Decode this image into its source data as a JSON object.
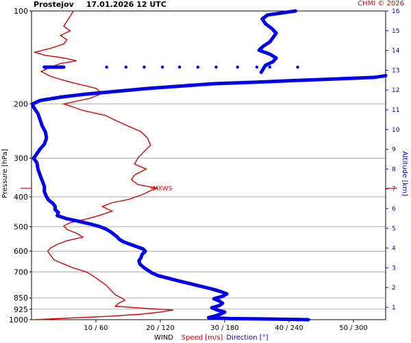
{
  "header": {
    "station": "Prostejov",
    "datetime": "17.01.2026 12 UTC",
    "credit": "CHMI © 2026"
  },
  "chart_data": {
    "type": "line",
    "left_axis": {
      "label": "Pressure [hPa]",
      "scale": "log",
      "range": [
        100,
        1000
      ],
      "ticks": [
        100,
        200,
        300,
        400,
        500,
        600,
        700,
        850,
        925,
        1000
      ]
    },
    "right_axis": {
      "label": "Altitude [km]",
      "ticks": [
        1,
        2,
        3,
        4,
        5,
        6,
        7,
        8,
        9,
        10,
        11,
        12,
        13,
        14,
        15,
        16
      ]
    },
    "bottom_axis": {
      "title": "WIND",
      "speed_label": "Speed [m/s]",
      "direction_label": "Direction [°]",
      "speed_range": [
        0,
        55
      ],
      "direction_range": [
        0,
        330
      ],
      "ticks": [
        "10 / 60",
        "20 / 120",
        "30 / 180",
        "40 / 240",
        "50 / 300"
      ],
      "tick_values_speed": [
        10,
        20,
        30,
        40,
        50
      ]
    },
    "annotation": {
      "text": "MXWS",
      "pressure": 375
    },
    "series": [
      {
        "name": "Speed [m/s]",
        "color": "#e00000",
        "points": [
          [
            1000,
            0.5
          ],
          [
            990,
            5
          ],
          [
            975,
            12
          ],
          [
            960,
            17
          ],
          [
            945,
            20
          ],
          [
            930,
            22
          ],
          [
            920,
            18
          ],
          [
            905,
            13
          ],
          [
            885,
            13.5
          ],
          [
            865,
            14.5
          ],
          [
            850,
            14
          ],
          [
            830,
            13
          ],
          [
            810,
            12.5
          ],
          [
            790,
            12
          ],
          [
            770,
            11.5
          ],
          [
            745,
            10.5
          ],
          [
            720,
            9.5
          ],
          [
            700,
            8.5
          ],
          [
            680,
            6.5
          ],
          [
            660,
            5
          ],
          [
            640,
            3.5
          ],
          [
            620,
            3
          ],
          [
            600,
            2.5
          ],
          [
            585,
            3
          ],
          [
            570,
            4
          ],
          [
            555,
            5.5
          ],
          [
            540,
            8
          ],
          [
            525,
            7
          ],
          [
            510,
            5.5
          ],
          [
            497,
            5
          ],
          [
            485,
            6
          ],
          [
            472,
            8.5
          ],
          [
            460,
            10.5
          ],
          [
            445,
            12.5
          ],
          [
            430,
            11
          ],
          [
            418,
            12.5
          ],
          [
            408,
            15
          ],
          [
            395,
            17
          ],
          [
            382,
            18.5
          ],
          [
            375,
            19.5
          ],
          [
            365,
            16.5
          ],
          [
            352,
            15.5
          ],
          [
            340,
            16
          ],
          [
            325,
            17.8
          ],
          [
            313,
            16
          ],
          [
            300,
            16.5
          ],
          [
            285,
            17.5
          ],
          [
            272,
            18.5
          ],
          [
            258,
            18
          ],
          [
            246,
            17
          ],
          [
            236,
            15
          ],
          [
            226,
            13
          ],
          [
            218,
            11.5
          ],
          [
            210,
            8
          ],
          [
            200,
            5
          ],
          [
            192,
            9
          ],
          [
            185,
            11
          ],
          [
            178,
            10
          ],
          [
            170,
            6
          ],
          [
            163,
            3
          ],
          [
            157,
            1.5
          ],
          [
            152,
            3
          ],
          [
            148,
            4.5
          ],
          [
            145,
            7
          ],
          [
            142,
            5
          ],
          [
            139,
            2
          ],
          [
            136,
            0.5
          ],
          [
            132,
            3
          ],
          [
            128,
            5
          ],
          [
            124,
            5.5
          ],
          [
            120,
            4.5
          ],
          [
            116,
            6
          ],
          [
            112,
            5
          ],
          [
            108,
            5.5
          ],
          [
            104,
            6
          ],
          [
            100,
            6.5
          ]
        ]
      },
      {
        "name": "Direction [°]",
        "color": "#0000ee",
        "points": [
          [
            1000,
            258
          ],
          [
            995,
            220
          ],
          [
            992,
            185
          ],
          [
            985,
            165
          ],
          [
            975,
            170
          ],
          [
            960,
            176
          ],
          [
            945,
            180
          ],
          [
            930,
            173
          ],
          [
            915,
            168
          ],
          [
            900,
            175
          ],
          [
            885,
            178
          ],
          [
            870,
            175
          ],
          [
            855,
            170
          ],
          [
            840,
            178
          ],
          [
            825,
            182
          ],
          [
            810,
            176
          ],
          [
            795,
            168
          ],
          [
            780,
            158
          ],
          [
            765,
            148
          ],
          [
            750,
            138
          ],
          [
            735,
            128
          ],
          [
            720,
            118
          ],
          [
            705,
            112
          ],
          [
            690,
            108
          ],
          [
            675,
            104
          ],
          [
            660,
            101
          ],
          [
            645,
            100
          ],
          [
            630,
            102
          ],
          [
            615,
            103
          ],
          [
            600,
            106
          ],
          [
            590,
            104
          ],
          [
            580,
            98
          ],
          [
            570,
            92
          ],
          [
            560,
            86
          ],
          [
            550,
            82
          ],
          [
            540,
            80
          ],
          [
            530,
            77
          ],
          [
            520,
            74
          ],
          [
            510,
            70
          ],
          [
            500,
            64
          ],
          [
            490,
            55
          ],
          [
            480,
            44
          ],
          [
            470,
            32
          ],
          [
            460,
            24
          ],
          [
            450,
            25
          ],
          [
            440,
            22
          ],
          [
            430,
            22
          ],
          [
            420,
            20
          ],
          [
            410,
            16
          ],
          [
            400,
            14
          ],
          [
            385,
            12
          ],
          [
            370,
            12
          ],
          [
            355,
            10
          ],
          [
            340,
            8
          ],
          [
            325,
            6
          ],
          [
            310,
            5
          ],
          [
            300,
            2
          ],
          [
            290,
            5
          ],
          [
            280,
            8
          ],
          [
            270,
            12
          ],
          [
            258,
            14
          ],
          [
            247,
            13
          ],
          [
            236,
            10
          ],
          [
            225,
            8
          ],
          [
            215,
            6
          ],
          [
            205,
            2
          ],
          [
            200,
            1
          ],
          [
            195,
            8
          ],
          [
            190,
            28
          ],
          [
            186,
            50
          ],
          [
            182,
            80
          ],
          [
            178,
            110
          ],
          [
            175,
            140
          ],
          [
            172,
            170
          ],
          [
            170,
            210
          ],
          [
            168,
            245
          ],
          [
            166,
            285
          ],
          [
            164,
            320
          ],
          [
            162,
            330
          ]
        ]
      }
    ],
    "upper_direction_points": [
      [
        100,
        246
      ],
      [
        103,
        220
      ],
      [
        106,
        215
      ],
      [
        110,
        218
      ],
      [
        114,
        224
      ],
      [
        118,
        228
      ],
      [
        122,
        225
      ],
      [
        126,
        222
      ],
      [
        130,
        216
      ],
      [
        134,
        212
      ],
      [
        138,
        222
      ],
      [
        142,
        228
      ],
      [
        146,
        225
      ],
      [
        150,
        218
      ],
      [
        154,
        216
      ],
      [
        158,
        214
      ]
    ],
    "dotted_row": {
      "pressure": 152,
      "directions": [
        70,
        88,
        105,
        122,
        138,
        155,
        172,
        192,
        210,
        222,
        248
      ]
    }
  }
}
